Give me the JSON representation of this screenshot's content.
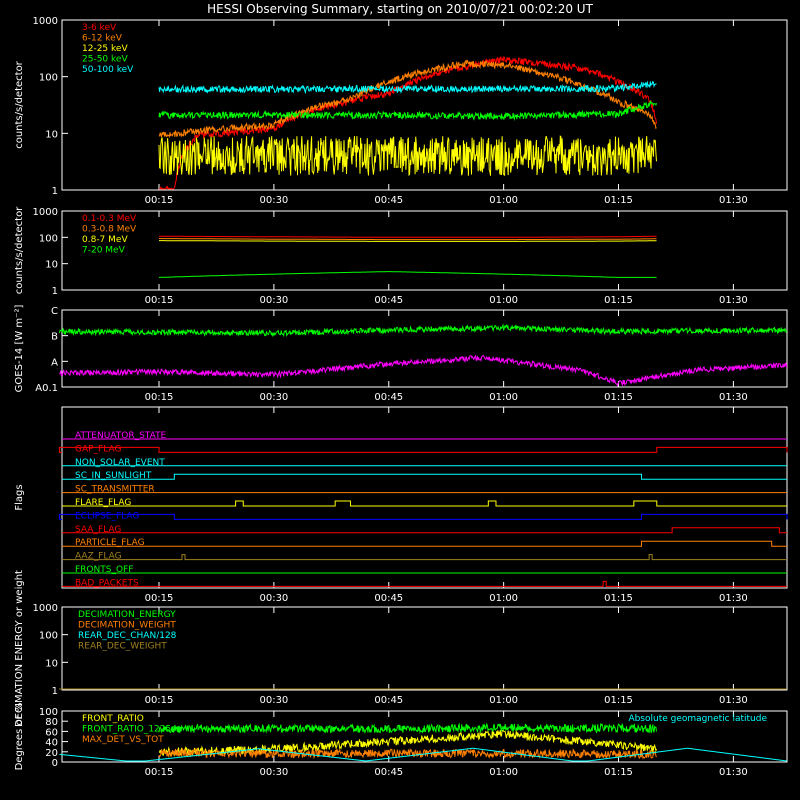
{
  "title": "HESSI Observing Summary, starting on 2010/07/21 00:02:20 UT",
  "time_ticks": [
    "00:15",
    "00:30",
    "00:45",
    "01:00",
    "01:15",
    "01:30"
  ],
  "colors": {
    "red": "#ff0000",
    "orange": "#ff8000",
    "yellow": "#ffff00",
    "green": "#00ff00",
    "cyan": "#00ffff",
    "magenta": "#ff00ff",
    "blue": "#0000ff",
    "brown": "#a08020",
    "white": "#ffffff"
  },
  "chart_data": [
    {
      "type": "line",
      "ylabel": "counts/s/detector",
      "yscale": "log",
      "ylim": [
        1,
        1000
      ],
      "yticks": [
        "1",
        "10",
        "100",
        "1000"
      ],
      "legend": "top-left",
      "series": [
        {
          "name": "3-6 keV",
          "color": "#ff0000",
          "x": [
            "00:15",
            "00:17",
            "00:20",
            "00:30",
            "00:45",
            "01:00",
            "01:10",
            "01:15",
            "01:19",
            "01:20"
          ],
          "values": [
            1,
            1,
            9,
            12,
            50,
            200,
            140,
            80,
            40,
            15
          ]
        },
        {
          "name": "6-12 keV",
          "color": "#ff8000",
          "x": [
            "00:15",
            "00:20",
            "00:30",
            "00:40",
            "00:45",
            "00:55",
            "01:00",
            "01:10",
            "01:15",
            "01:19",
            "01:20"
          ],
          "values": [
            9,
            11,
            14,
            40,
            80,
            170,
            160,
            70,
            35,
            22,
            12
          ]
        },
        {
          "name": "12-25 keV",
          "color": "#ffff00",
          "x": [
            "00:15",
            "00:30",
            "00:45",
            "01:00",
            "01:15",
            "01:20"
          ],
          "values": [
            4,
            4,
            4,
            4,
            4,
            4
          ]
        },
        {
          "name": "25-50 keV",
          "color": "#00ff00",
          "x": [
            "00:15",
            "00:30",
            "00:45",
            "01:00",
            "01:15",
            "01:20"
          ],
          "values": [
            21,
            21,
            21,
            20,
            22,
            35
          ]
        },
        {
          "name": "50-100 keV",
          "color": "#00ffff",
          "x": [
            "00:15",
            "00:30",
            "00:45",
            "01:00",
            "01:15",
            "01:20"
          ],
          "values": [
            60,
            60,
            61,
            61,
            62,
            75
          ]
        }
      ]
    },
    {
      "type": "line",
      "ylabel": "counts/s/detector",
      "yscale": "log",
      "ylim": [
        1,
        1000
      ],
      "yticks": [
        "1",
        "10",
        "100",
        "1000"
      ],
      "legend": "top-left",
      "series": [
        {
          "name": "0.1-0.3 MeV",
          "color": "#ff0000",
          "x": [
            "00:15",
            "00:30",
            "00:45",
            "01:00",
            "01:15",
            "01:20"
          ],
          "values": [
            110,
            105,
            100,
            100,
            105,
            110
          ]
        },
        {
          "name": "0.3-0.8 MeV",
          "color": "#ff8000",
          "x": [
            "00:15",
            "00:30",
            "00:45",
            "01:00",
            "01:15",
            "01:20"
          ],
          "values": [
            90,
            85,
            82,
            82,
            85,
            88
          ]
        },
        {
          "name": "0.8-7 MeV",
          "color": "#ffff00",
          "x": [
            "00:15",
            "00:30",
            "00:45",
            "01:00",
            "01:15",
            "01:20"
          ],
          "values": [
            75,
            72,
            70,
            70,
            72,
            74
          ]
        },
        {
          "name": "7-20 MeV",
          "color": "#00ff00",
          "x": [
            "00:15",
            "00:30",
            "00:45",
            "01:00",
            "01:15",
            "01:20"
          ],
          "values": [
            3,
            4,
            5,
            4,
            3,
            3
          ]
        }
      ]
    },
    {
      "type": "line",
      "ylabel": "GOES-14 [W m⁻²]",
      "yticks": [
        "A0.1",
        "A",
        "B",
        "C"
      ],
      "series": [
        {
          "name": "",
          "color": "#00ff00",
          "x": [
            "00:02",
            "00:30",
            "00:45",
            "01:00",
            "01:15",
            "01:37"
          ],
          "values": [
            0.72,
            0.7,
            0.74,
            0.77,
            0.72,
            0.74
          ]
        },
        {
          "name": "",
          "color": "#ff00ff",
          "x": [
            "00:02",
            "00:15",
            "00:30",
            "00:45",
            "00:57",
            "01:10",
            "01:15",
            "01:25",
            "01:37"
          ],
          "values": [
            0.18,
            0.2,
            0.16,
            0.3,
            0.38,
            0.22,
            0.05,
            0.22,
            0.28
          ]
        }
      ]
    },
    {
      "type": "line",
      "ylabel": "Flags",
      "flags": [
        {
          "name": "ATTENUATOR_STATE",
          "color": "#ff00ff",
          "segments": []
        },
        {
          "name": "GAP_FLAG",
          "color": "#ff0000",
          "segments": [
            [
              "00:02",
              "00:15"
            ],
            [
              "01:20",
              "01:37"
            ]
          ]
        },
        {
          "name": "NON_SOLAR_EVENT",
          "color": "#00ffff",
          "segments": []
        },
        {
          "name": "SC_IN_SUNLIGHT",
          "color": "#00ffff",
          "segments": [
            [
              "00:17",
              "01:18"
            ]
          ]
        },
        {
          "name": "SC_TRANSMITTER",
          "color": "#ff8000",
          "segments": []
        },
        {
          "name": "FLARE_FLAG",
          "color": "#ffff00",
          "segments": [
            [
              "00:25",
              "00:26"
            ],
            [
              "00:38",
              "00:40"
            ],
            [
              "00:58",
              "00:59"
            ],
            [
              "01:17",
              "01:20"
            ]
          ]
        },
        {
          "name": "ECLIPSE_FLAG",
          "color": "#0000ff",
          "segments": [
            [
              "00:02",
              "00:17"
            ],
            [
              "01:18",
              "01:37"
            ]
          ]
        },
        {
          "name": "SAA_FLAG",
          "color": "#ff0000",
          "segments": [
            [
              "01:22",
              "01:36"
            ]
          ]
        },
        {
          "name": "PARTICLE_FLAG",
          "color": "#ff8000",
          "segments": [
            [
              "01:18",
              "01:35"
            ]
          ]
        },
        {
          "name": "AAZ_FLAG",
          "color": "#a08020",
          "segments": [
            [
              "00:18",
              "00:18"
            ],
            [
              "01:19",
              "01:19"
            ]
          ]
        },
        {
          "name": "FRONTS_OFF",
          "color": "#00ff00",
          "segments": []
        },
        {
          "name": "BAD_PACKETS",
          "color": "#ff0000",
          "segments": [
            [
              "01:13",
              "01:13"
            ]
          ]
        }
      ]
    },
    {
      "type": "line",
      "ylabel": "DECIMATION ENERGY or weight",
      "yscale": "log",
      "ylim": [
        1,
        1000
      ],
      "yticks": [
        "1",
        "10",
        "100",
        "1000"
      ],
      "legend": "top-left",
      "series": [
        {
          "name": "DECIMATION_ENERGY",
          "color": "#00ff00",
          "x": [
            "00:02",
            "01:37"
          ],
          "values": [
            0,
            0
          ]
        },
        {
          "name": "DECIMATION_WEIGHT",
          "color": "#ff8000",
          "x": [
            "00:02",
            "01:37"
          ],
          "values": [
            0,
            0
          ]
        },
        {
          "name": "REAR_DEC_CHAN/128",
          "color": "#00ffff",
          "x": [
            "00:02",
            "01:37"
          ],
          "values": [
            0,
            0
          ]
        },
        {
          "name": "REAR_DEC_WEIGHT",
          "color": "#a08020",
          "x": [
            "00:02",
            "01:37"
          ],
          "values": [
            0,
            0
          ]
        }
      ]
    },
    {
      "type": "line",
      "ylabel": "Degrees or %",
      "ylim": [
        0,
        100
      ],
      "yticks": [
        "0",
        "20",
        "40",
        "60",
        "80",
        "100"
      ],
      "legend": "top-left",
      "annotation": "Absolute geomagnetic latitude",
      "series": [
        {
          "name": "FRONT_RATIO",
          "color": "#ffff00",
          "x": [
            "00:15",
            "00:30",
            "00:45",
            "01:00",
            "01:10",
            "01:20"
          ],
          "values": [
            20,
            25,
            40,
            55,
            40,
            25
          ]
        },
        {
          "name": "FRONT_RATIO_1225",
          "color": "#00ff00",
          "x": [
            "00:15",
            "00:30",
            "00:45",
            "01:00",
            "01:15",
            "01:20"
          ],
          "values": [
            65,
            66,
            65,
            67,
            66,
            65
          ]
        },
        {
          "name": "MAX_DET_VS_TOT",
          "color": "#ff8000",
          "x": [
            "00:15",
            "00:30",
            "00:45",
            "01:00",
            "01:15",
            "01:20"
          ],
          "values": [
            18,
            16,
            17,
            17,
            16,
            15
          ]
        },
        {
          "name": "Absolute geomagnetic latitude",
          "color": "#00ffff",
          "x": [
            "00:02",
            "00:12",
            "00:28",
            "00:42",
            "00:56",
            "01:10",
            "01:24",
            "01:37"
          ],
          "values": [
            15,
            0,
            26,
            2,
            27,
            0,
            27,
            2
          ]
        }
      ]
    }
  ]
}
